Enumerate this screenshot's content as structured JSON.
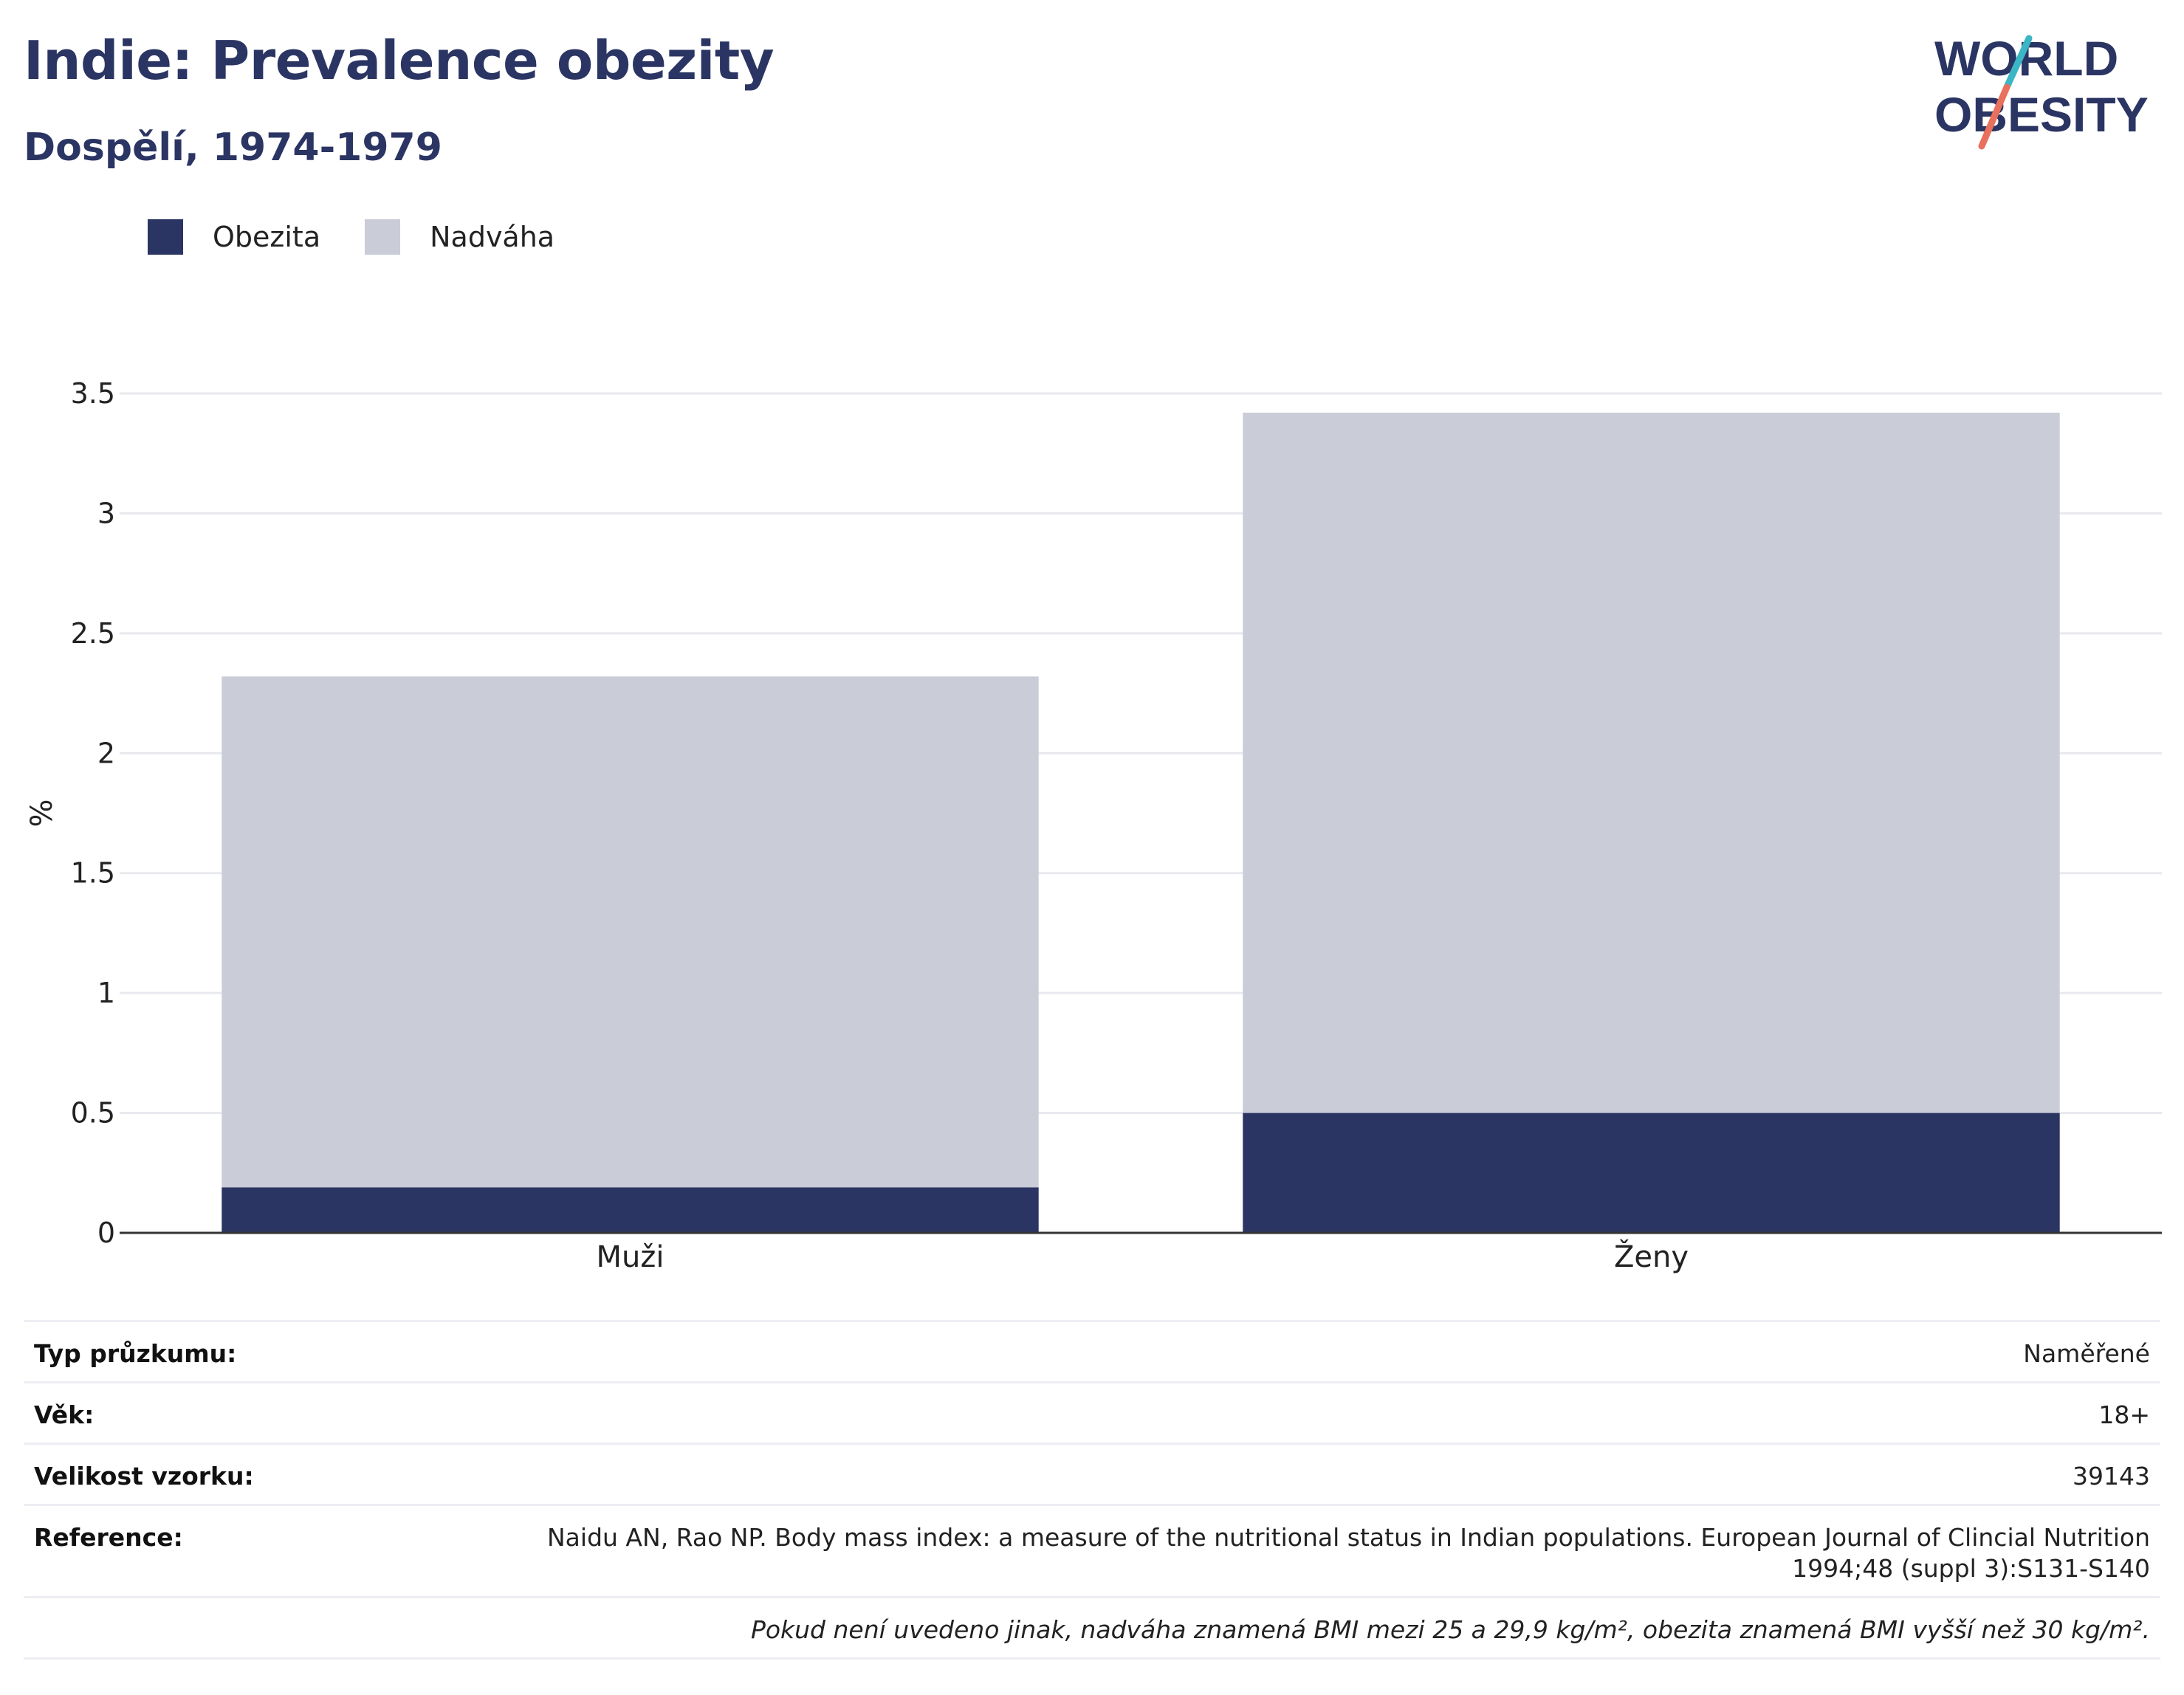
{
  "header": {
    "title": "Indie: Prevalence obezity",
    "subtitle": "Dospělí, 1974-1979"
  },
  "logo": {
    "line1": "WORLD",
    "line2": "OBESITY",
    "colors": {
      "text": "#2b3563",
      "teal": "#3bb6c4",
      "coral": "#e8705c"
    }
  },
  "colors": {
    "obesity": "#2b3563",
    "overweight": "#caccd8",
    "grid": "#e8e9ee",
    "axis": "#333333"
  },
  "chart_data": {
    "type": "bar",
    "stacked": true,
    "categories": [
      "Muži",
      "Ženy"
    ],
    "series": [
      {
        "name": "Obezita",
        "values": [
          0.19,
          0.5
        ]
      },
      {
        "name": "Nadváha",
        "values": [
          2.13,
          2.92
        ]
      }
    ],
    "title": "",
    "xlabel": "",
    "ylabel": "%",
    "ylim": [
      0,
      3.5
    ],
    "yticks": [
      "0",
      "0.5",
      "1",
      "1.5",
      "2",
      "2.5",
      "3",
      "3.5"
    ],
    "grid": true,
    "legend_position": "top-left"
  },
  "info": {
    "survey_type_label": "Typ průzkumu:",
    "survey_type_value": "Naměřené",
    "age_label": "Věk:",
    "age_value": "18+",
    "sample_label": "Velikost vzorku:",
    "sample_value": "39143",
    "reference_label": "Reference:",
    "reference_line1": "Naidu AN, Rao NP. Body mass index: a measure of the nutritional status in Indian populations. European Journal of Clincial Nutrition",
    "reference_line2": "1994;48 (suppl 3):S131-S140",
    "note": "Pokud není uvedeno jinak, nadváha znamená BMI mezi 25 a 29,9 kg/m², obezita znamená BMI vyšší než 30 kg/m²."
  }
}
